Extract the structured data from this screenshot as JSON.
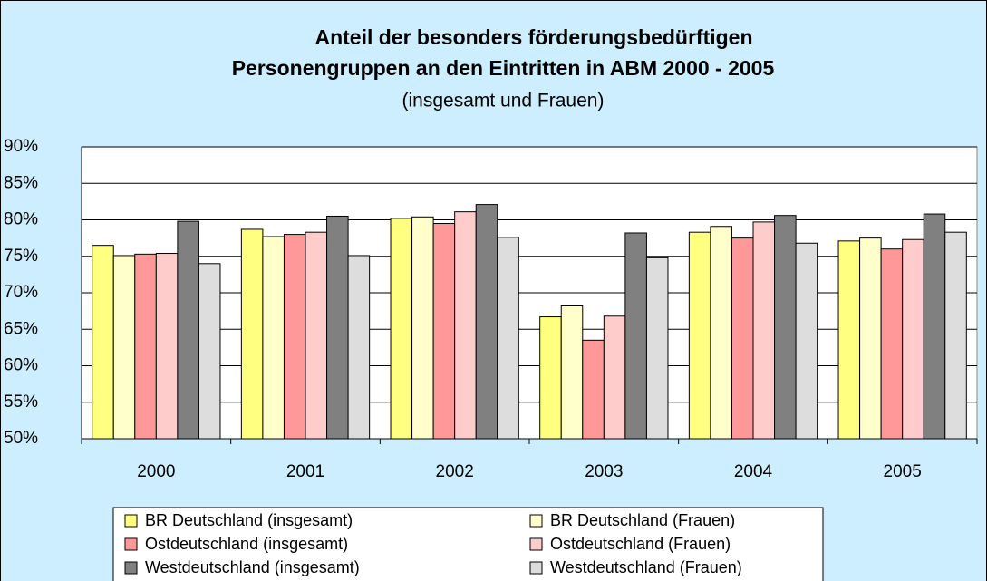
{
  "chart_data": {
    "type": "bar",
    "title": [
      "Anteil der besonders förderungsbedürftigen",
      "Personengruppen an den Eintritten in ABM 2000 - 2005"
    ],
    "subtitle": "(insgesamt und Frauen)",
    "categories": [
      "2000",
      "2001",
      "2002",
      "2003",
      "2004",
      "2005"
    ],
    "series": [
      {
        "name": "BR Deutschland (insgesamt)",
        "color": "#ffff80",
        "values": [
          76.5,
          78.7,
          80.2,
          66.7,
          78.3,
          77.1
        ]
      },
      {
        "name": "BR Deutschland (Frauen)",
        "color": "#ffffcc",
        "values": [
          75.1,
          77.7,
          80.4,
          68.2,
          79.1,
          77.5
        ]
      },
      {
        "name": "Ostdeutschland (insgesamt)",
        "color": "#ff9999",
        "values": [
          75.3,
          78.0,
          79.5,
          63.5,
          77.5,
          76.0
        ]
      },
      {
        "name": "Ostdeutschland (Frauen)",
        "color": "#ffcccc",
        "values": [
          75.4,
          78.3,
          81.1,
          66.8,
          79.7,
          77.3
        ]
      },
      {
        "name": "Westdeutschland (insgesamt)",
        "color": "#808080",
        "values": [
          79.8,
          80.5,
          82.1,
          78.2,
          80.6,
          80.8
        ]
      },
      {
        "name": "Westdeutschland (Frauen)",
        "color": "#dddddd",
        "values": [
          74.0,
          75.1,
          77.6,
          74.8,
          76.8,
          78.3
        ]
      }
    ],
    "ylim": [
      50,
      90
    ],
    "yticks": [
      {
        "value": 50,
        "label": "50%"
      },
      {
        "value": 55,
        "label": "55%"
      },
      {
        "value": 60,
        "label": "60%"
      },
      {
        "value": 65,
        "label": "65%"
      },
      {
        "value": 70,
        "label": "70%"
      },
      {
        "value": 75,
        "label": "75%"
      },
      {
        "value": 80,
        "label": "80%"
      },
      {
        "value": 85,
        "label": "85%"
      },
      {
        "value": 90,
        "label": "90%"
      }
    ],
    "legend": "bottom"
  }
}
